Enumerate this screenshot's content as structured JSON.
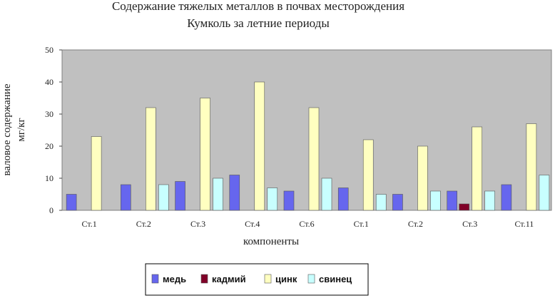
{
  "chart_data": {
    "type": "bar",
    "title_line1": "Содержание тяжелых металлов в почвах месторождения",
    "title_line2": "Кумколь за летние периоды",
    "xlabel": "компоненты",
    "ylabel_line1": "валовое содержание",
    "ylabel_line2": "мг/кг",
    "ylim": [
      0,
      50
    ],
    "yticks": [
      "0",
      "10",
      "20",
      "30",
      "40",
      "50"
    ],
    "grid": false,
    "legend_position": "bottom",
    "categories": [
      "Ст.1",
      "Ст.2",
      "Ст.3",
      "Ст.4",
      "Ст.6",
      "Ст.1",
      "Ст.2",
      "Ст.3",
      "Ст.11"
    ],
    "series": [
      {
        "name": "медь",
        "color": "#6666ee",
        "values": [
          5,
          8,
          9,
          11,
          6,
          7,
          5,
          6,
          8
        ]
      },
      {
        "name": "кадмий",
        "color": "#800028",
        "values": [
          0,
          0,
          0,
          0,
          0,
          0,
          0,
          2,
          0
        ]
      },
      {
        "name": "цинк",
        "color": "#ffffc0",
        "values": [
          23,
          32,
          35,
          40,
          32,
          22,
          20,
          26,
          27
        ]
      },
      {
        "name": "свинец",
        "color": "#c8ffff",
        "values": [
          0,
          8,
          10,
          7,
          10,
          5,
          6,
          6,
          11
        ]
      }
    ],
    "colors": {
      "plot_background": "#c0c0c0",
      "bar_outline": "#555555"
    }
  }
}
